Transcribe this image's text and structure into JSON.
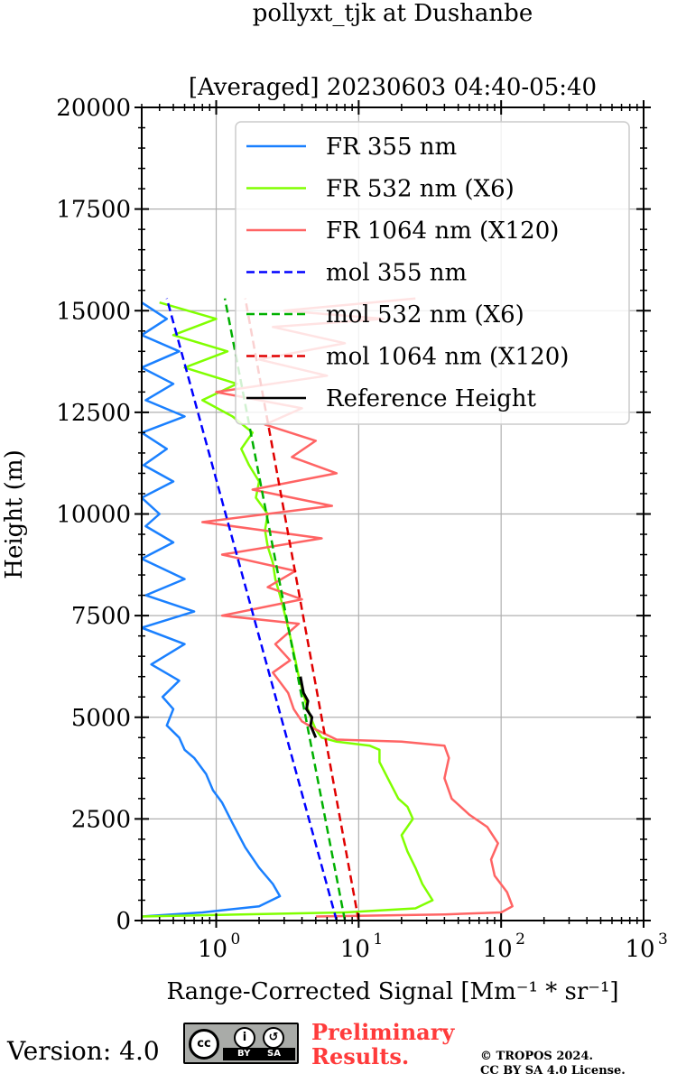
{
  "title": {
    "line1": "pollyxt_tjk at Dushanbe",
    "line2": "[Averaged] 20230603 04:40-05:40"
  },
  "footer": {
    "version": "Version: 4.0",
    "cc_mark": "cc",
    "cc_by": "BY",
    "cc_sa": "SA",
    "preliminary_line1": "Preliminary",
    "preliminary_line2": "Results.",
    "copyright_line1": "© TROPOS 2024.",
    "copyright_line2": "CC BY SA 4.0 License."
  },
  "colors": {
    "fr355": "#1a80ff",
    "fr532": "#80ff00",
    "fr1064": "#ff6464",
    "mol355": "#0000ff",
    "mol532": "#00b000",
    "mol1064": "#e00000",
    "reference": "#000000",
    "grid": "#b0b0b0"
  },
  "chart_data": {
    "type": "line",
    "x_scale": "log",
    "xlim": [
      0.3,
      1000
    ],
    "ylim": [
      0,
      20000
    ],
    "grid": true,
    "legend_position": "top-right",
    "xlabel": "Range-Corrected Signal [Mm⁻¹ * sr⁻¹]",
    "ylabel": "Height (m)",
    "x_ticks": [
      {
        "value": 1,
        "base": "10",
        "exp": "0"
      },
      {
        "value": 10,
        "base": "10",
        "exp": "1"
      },
      {
        "value": 100,
        "base": "10",
        "exp": "2"
      },
      {
        "value": 1000,
        "base": "10",
        "exp": "3"
      }
    ],
    "y_ticks": [
      0,
      2500,
      5000,
      7500,
      10000,
      12500,
      15000,
      17500,
      20000
    ],
    "y_tick_labels": [
      "0",
      "2500",
      "5000",
      "7500",
      "10000",
      "12500",
      "15000",
      "17500",
      "20000"
    ],
    "series": [
      {
        "name": "FR 355 nm",
        "style": "solid",
        "color_key": "fr355",
        "points": [
          [
            0.3,
            100
          ],
          [
            0.8,
            200
          ],
          [
            2.0,
            350
          ],
          [
            2.8,
            600
          ],
          [
            2.5,
            900
          ],
          [
            2.0,
            1300
          ],
          [
            1.6,
            1800
          ],
          [
            1.3,
            2400
          ],
          [
            1.1,
            2900
          ],
          [
            0.95,
            3200
          ],
          [
            0.85,
            3600
          ],
          [
            0.7,
            4000
          ],
          [
            0.6,
            4200
          ],
          [
            0.55,
            4500
          ],
          [
            0.45,
            4800
          ],
          [
            0.5,
            5200
          ],
          [
            0.42,
            5500
          ],
          [
            0.55,
            5900
          ],
          [
            0.35,
            6300
          ],
          [
            0.6,
            6800
          ],
          [
            0.3,
            7200
          ],
          [
            0.7,
            7600
          ],
          [
            0.32,
            8000
          ],
          [
            0.6,
            8400
          ],
          [
            0.3,
            8900
          ],
          [
            0.5,
            9300
          ],
          [
            0.32,
            9700
          ],
          [
            0.4,
            10000
          ],
          [
            0.3,
            10400
          ],
          [
            0.5,
            10800
          ],
          [
            0.31,
            11200
          ],
          [
            0.45,
            11600
          ],
          [
            0.3,
            12000
          ],
          [
            0.6,
            12400
          ],
          [
            0.32,
            12800
          ],
          [
            0.5,
            13200
          ],
          [
            0.3,
            13600
          ],
          [
            0.55,
            14000
          ],
          [
            0.3,
            14400
          ],
          [
            0.45,
            14800
          ],
          [
            0.3,
            15200
          ]
        ]
      },
      {
        "name": "FR 532 nm (X6)",
        "style": "solid",
        "color_key": "fr532",
        "points": [
          [
            0.3,
            100
          ],
          [
            8,
            200
          ],
          [
            25,
            300
          ],
          [
            33,
            500
          ],
          [
            28,
            900
          ],
          [
            25,
            1300
          ],
          [
            22,
            1700
          ],
          [
            20,
            2100
          ],
          [
            24,
            2500
          ],
          [
            22,
            2800
          ],
          [
            19,
            3000
          ],
          [
            16,
            3500
          ],
          [
            14,
            3900
          ],
          [
            14,
            4200
          ],
          [
            12,
            4300
          ],
          [
            7,
            4400
          ],
          [
            5.5,
            4500
          ],
          [
            5,
            4700
          ],
          [
            4.6,
            5000
          ],
          [
            4.3,
            5300
          ],
          [
            4,
            5700
          ],
          [
            3.8,
            6000
          ],
          [
            3.6,
            6400
          ],
          [
            3.4,
            6800
          ],
          [
            3.2,
            7200
          ],
          [
            3,
            7600
          ],
          [
            2.8,
            8000
          ],
          [
            2.6,
            8400
          ],
          [
            2.5,
            8800
          ],
          [
            2.3,
            9200
          ],
          [
            2.2,
            9600
          ],
          [
            2.3,
            10000
          ],
          [
            1.9,
            10400
          ],
          [
            2,
            10800
          ],
          [
            1.7,
            11200
          ],
          [
            1.5,
            11600
          ],
          [
            1.8,
            12000
          ],
          [
            1.3,
            12400
          ],
          [
            0.8,
            12800
          ],
          [
            1.4,
            13200
          ],
          [
            0.6,
            13600
          ],
          [
            1.2,
            14000
          ],
          [
            0.5,
            14400
          ],
          [
            1.0,
            14800
          ],
          [
            0.4,
            15200
          ]
        ]
      },
      {
        "name": "FR 1064 nm (X120)",
        "style": "solid",
        "color_key": "fr1064",
        "points": [
          [
            5,
            100
          ],
          [
            40,
            150
          ],
          [
            100,
            200
          ],
          [
            120,
            350
          ],
          [
            110,
            700
          ],
          [
            90,
            1100
          ],
          [
            85,
            1500
          ],
          [
            95,
            1900
          ],
          [
            80,
            2300
          ],
          [
            60,
            2600
          ],
          [
            45,
            3000
          ],
          [
            40,
            3500
          ],
          [
            43,
            4000
          ],
          [
            40,
            4300
          ],
          [
            20,
            4400
          ],
          [
            7,
            4450
          ],
          [
            5,
            4700
          ],
          [
            4,
            4900
          ],
          [
            3.5,
            5200
          ],
          [
            3.2,
            5600
          ],
          [
            2.5,
            6100
          ],
          [
            3.3,
            6400
          ],
          [
            2.6,
            6800
          ],
          [
            3.8,
            7300
          ],
          [
            1.1,
            7500
          ],
          [
            4,
            7900
          ],
          [
            2.3,
            8200
          ],
          [
            3.6,
            8600
          ],
          [
            1.1,
            9000
          ],
          [
            5.5,
            9400
          ],
          [
            0.8,
            9800
          ],
          [
            6.5,
            10200
          ],
          [
            1.8,
            10600
          ],
          [
            7,
            11000
          ],
          [
            3.4,
            11400
          ],
          [
            5,
            11800
          ],
          [
            2.2,
            12200
          ],
          [
            4,
            12600
          ],
          [
            1.0,
            13000
          ],
          [
            6,
            13400
          ],
          [
            2,
            13800
          ],
          [
            8,
            14200
          ],
          [
            2.5,
            14600
          ],
          [
            15,
            14800
          ],
          [
            3,
            15000
          ],
          [
            25,
            15300
          ]
        ]
      },
      {
        "name": "mol 355 nm",
        "style": "dashed",
        "color_key": "mol355",
        "points": [
          [
            7.0,
            0
          ],
          [
            0.45,
            15300
          ]
        ]
      },
      {
        "name": "mol 532 nm (X6)",
        "style": "dashed",
        "color_key": "mol532",
        "points": [
          [
            8.0,
            0
          ],
          [
            1.15,
            15300
          ]
        ]
      },
      {
        "name": "mol 1064 nm (X120)",
        "style": "dashed",
        "color_key": "mol1064",
        "points": [
          [
            10.0,
            0
          ],
          [
            1.6,
            15300
          ]
        ]
      },
      {
        "name": "Reference Height",
        "style": "solid",
        "color_key": "reference",
        "points": [
          [
            5.0,
            4500
          ],
          [
            4.6,
            4800
          ],
          [
            4.7,
            5000
          ],
          [
            4.3,
            5200
          ],
          [
            4.4,
            5400
          ],
          [
            4.1,
            5600
          ],
          [
            4.0,
            5800
          ],
          [
            3.9,
            6000
          ]
        ]
      }
    ]
  }
}
